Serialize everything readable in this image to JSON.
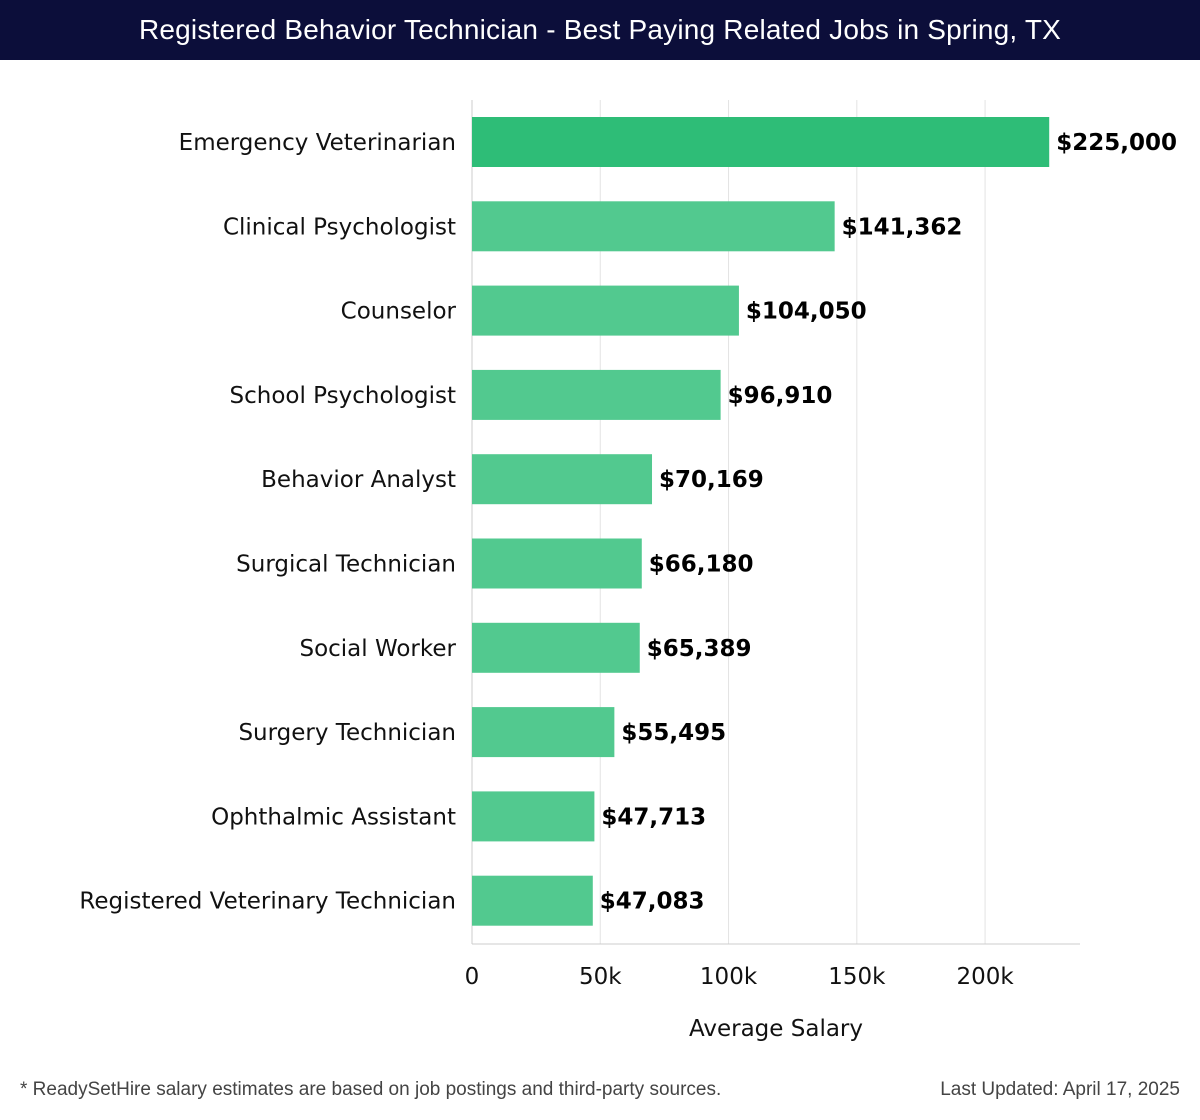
{
  "header": {
    "title": "Registered Behavior Technician - Best Paying Related Jobs in Spring, TX"
  },
  "chart_data": {
    "type": "bar",
    "orientation": "horizontal",
    "title": "Registered Behavior Technician - Best Paying Related Jobs in Spring, TX",
    "categories": [
      "Emergency Veterinarian",
      "Clinical Psychologist",
      "Counselor",
      "School Psychologist",
      "Behavior Analyst",
      "Surgical Technician",
      "Social Worker",
      "Surgery Technician",
      "Ophthalmic Assistant",
      "Registered Veterinary Technician"
    ],
    "values": [
      225000,
      141362,
      104050,
      96910,
      70169,
      66180,
      65389,
      55495,
      47713,
      47083
    ],
    "value_labels": [
      "$225,000",
      "$141,362",
      "$104,050",
      "$96,910",
      "$70,169",
      "$66,180",
      "$65,389",
      "$55,495",
      "$47,713",
      "$47,083"
    ],
    "xlabel": "Average Salary",
    "ylabel": "",
    "xlim": [
      0,
      237000
    ],
    "ticks": [
      0,
      50000,
      100000,
      150000,
      200000
    ],
    "tick_labels": [
      "0",
      "50k",
      "100k",
      "150k",
      "200k"
    ],
    "grid": true,
    "colors": {
      "top_bar": "#2ebd77",
      "bar": "#52c98f",
      "grid": "#e3e3e3",
      "axis": "#cccccc"
    }
  },
  "footer": {
    "note": "* ReadySetHire salary estimates are based on job postings and third-party sources.",
    "updated": "Last Updated: April 17, 2025"
  }
}
